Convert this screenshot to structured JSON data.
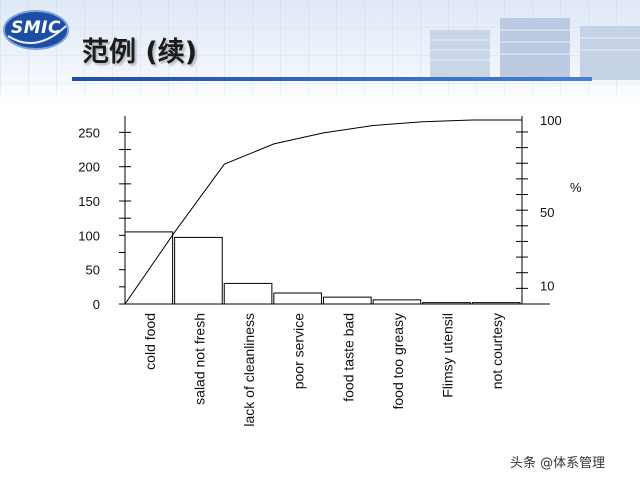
{
  "slide": {
    "title": "范例 (续)",
    "logo_text": "SMIC",
    "watermark": "头条 @体系管理"
  },
  "chart_data": {
    "type": "bar",
    "categories": [
      "cold food",
      "salad not fresh",
      "lack of cleanliness",
      "poor service",
      "food taste bad",
      "food too greasy",
      "Flimsy utensil",
      "not courtesy"
    ],
    "values": [
      105,
      97,
      30,
      16,
      10,
      6,
      2,
      2
    ],
    "left_axis": {
      "ticks": [
        0,
        50,
        100,
        150,
        200,
        250
      ],
      "ylim": [
        0,
        268
      ]
    },
    "right_axis": {
      "ticks": [
        10,
        50,
        100
      ],
      "ylim": [
        0,
        100
      ],
      "label": "%"
    },
    "cumulative_percent": [
      0,
      39,
      76,
      87,
      93,
      97,
      99,
      100
    ],
    "grid": false,
    "legend": "none",
    "colors": {
      "bar_fill": "#ffffff",
      "stroke": "#000000"
    }
  }
}
